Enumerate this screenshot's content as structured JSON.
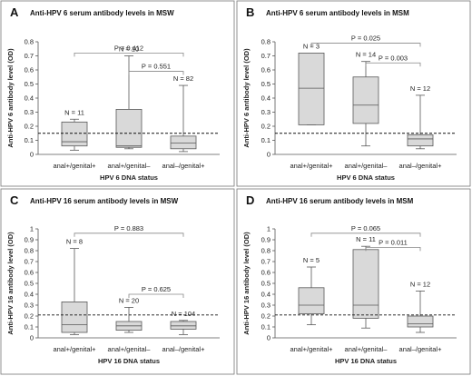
{
  "chart_data": [
    {
      "type": "box",
      "panel": "A",
      "title": "Anti-HPV 6 serum antibody levels in MSW",
      "ylabel": "Anti-HPV 6 antibody level (OD)",
      "xlabel": "HPV 6 DNA status",
      "ylim": [
        0,
        0.8
      ],
      "yticks": [
        0,
        0.1,
        0.2,
        0.3,
        0.4,
        0.5,
        0.6,
        0.7,
        0.8
      ],
      "yticklabels": [
        "0",
        "0.1",
        "0.2",
        "0.3",
        "0.4",
        "0.5",
        "0.6",
        "0.7",
        "0.8"
      ],
      "cutoff": 0.15,
      "categories": [
        "anal+/genital+",
        "anal+/genital–",
        "anal–/genital+"
      ],
      "n_labels": [
        "N = 11",
        "N = 10",
        "N = 82"
      ],
      "boxes": [
        {
          "whisker_low": 0.03,
          "q1": 0.06,
          "median": 0.09,
          "q3": 0.23,
          "whisker_high": 0.25
        },
        {
          "whisker_low": 0.04,
          "q1": 0.05,
          "median": 0.06,
          "q3": 0.32,
          "whisker_high": 0.7
        },
        {
          "whisker_low": 0.02,
          "q1": 0.04,
          "median": 0.08,
          "q3": 0.13,
          "whisker_high": 0.49
        }
      ],
      "brackets": [
        {
          "from": 0,
          "to": 2,
          "label": "P = 0.412",
          "y": 0.72
        },
        {
          "from": 1,
          "to": 2,
          "label": "P = 0.551",
          "y": 0.59
        }
      ]
    },
    {
      "type": "box",
      "panel": "B",
      "title": "Anti-HPV 6 serum antibody levels in MSM",
      "ylabel": "Anti-HPV 6 antibody level (OD)",
      "xlabel": "HPV 6 DNA status",
      "ylim": [
        0,
        0.8
      ],
      "yticks": [
        0,
        0.1,
        0.2,
        0.3,
        0.4,
        0.5,
        0.6,
        0.7,
        0.8
      ],
      "yticklabels": [
        "0",
        "0.1",
        "0.2",
        "0.3",
        "0.4",
        "0.5",
        "0.6",
        "0.7",
        "0.8"
      ],
      "cutoff": 0.15,
      "categories": [
        "anal+/genital+",
        "anal+/genital–",
        "anal–/genital+"
      ],
      "n_labels": [
        "N = 3",
        "N = 14",
        "N = 12"
      ],
      "boxes": [
        {
          "whisker_low": 0.21,
          "q1": 0.21,
          "median": 0.47,
          "q3": 0.72,
          "whisker_high": 0.72
        },
        {
          "whisker_low": 0.06,
          "q1": 0.22,
          "median": 0.35,
          "q3": 0.55,
          "whisker_high": 0.66
        },
        {
          "whisker_low": 0.04,
          "q1": 0.06,
          "median": 0.11,
          "q3": 0.14,
          "whisker_high": 0.42
        }
      ],
      "brackets": [
        {
          "from": 0,
          "to": 2,
          "label": "P = 0.025",
          "y": 0.79
        },
        {
          "from": 1,
          "to": 2,
          "label": "P = 0.003",
          "y": 0.65
        }
      ]
    },
    {
      "type": "box",
      "panel": "C",
      "title": "Anti-HPV 16 serum antibody levels in MSW",
      "ylabel": "Anti-HPV 16 antibody level (OD)",
      "xlabel": "HPV 16 DNA status",
      "ylim": [
        0,
        1
      ],
      "yticks": [
        0,
        0.1,
        0.2,
        0.3,
        0.4,
        0.5,
        0.6,
        0.7,
        0.8,
        0.9,
        1
      ],
      "yticklabels": [
        "0",
        "0.1",
        "0.2",
        "0.3",
        "0.4",
        "0.5",
        "0.6",
        "0.7",
        "0.8",
        "0.9",
        "1"
      ],
      "cutoff": 0.21,
      "categories": [
        "anal+/genital+",
        "anal+/genital–",
        "anal–/genital+"
      ],
      "n_labels": [
        "N = 8",
        "N = 20",
        "N = 104"
      ],
      "boxes": [
        {
          "whisker_low": 0.03,
          "q1": 0.05,
          "median": 0.12,
          "q3": 0.33,
          "whisker_high": 0.82
        },
        {
          "whisker_low": 0.05,
          "q1": 0.07,
          "median": 0.11,
          "q3": 0.15,
          "whisker_high": 0.28
        },
        {
          "whisker_low": 0.03,
          "q1": 0.08,
          "median": 0.11,
          "q3": 0.15,
          "whisker_high": 0.16
        }
      ],
      "brackets": [
        {
          "from": 0,
          "to": 2,
          "label": "P = 0.883",
          "y": 0.96
        },
        {
          "from": 1,
          "to": 2,
          "label": "P = 0.625",
          "y": 0.4
        }
      ]
    },
    {
      "type": "box",
      "panel": "D",
      "title": "Anti-HPV 16 serum antibody levels in MSM",
      "ylabel": "Anti-HPV 16 antibody level (OD)",
      "xlabel": "HPV 16 DNA status",
      "ylim": [
        0,
        1
      ],
      "yticks": [
        0,
        0.1,
        0.2,
        0.3,
        0.4,
        0.5,
        0.6,
        0.7,
        0.8,
        0.9,
        1
      ],
      "yticklabels": [
        "0",
        "0.1",
        "0.2",
        "0.3",
        "0.4",
        "0.5",
        "0.6",
        "0.7",
        "0.8",
        "0.9",
        "1"
      ],
      "cutoff": 0.21,
      "categories": [
        "anal+/genital+",
        "anal+/genital–",
        "anal–/genital+"
      ],
      "n_labels": [
        "N = 5",
        "N = 11",
        "N = 12"
      ],
      "boxes": [
        {
          "whisker_low": 0.12,
          "q1": 0.22,
          "median": 0.3,
          "q3": 0.46,
          "whisker_high": 0.65
        },
        {
          "whisker_low": 0.09,
          "q1": 0.18,
          "median": 0.3,
          "q3": 0.81,
          "whisker_high": 0.84
        },
        {
          "whisker_low": 0.05,
          "q1": 0.1,
          "median": 0.13,
          "q3": 0.2,
          "whisker_high": 0.43
        }
      ],
      "brackets": [
        {
          "from": 0,
          "to": 2,
          "label": "P = 0.065",
          "y": 0.96
        },
        {
          "from": 1,
          "to": 2,
          "label": "P = 0.011",
          "y": 0.83
        }
      ]
    }
  ]
}
